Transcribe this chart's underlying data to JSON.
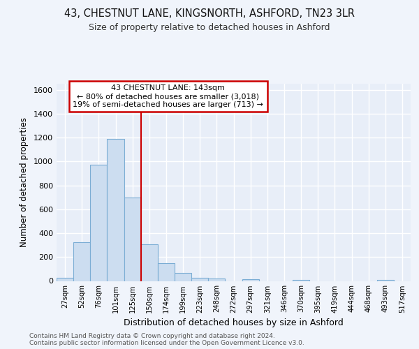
{
  "title1": "43, CHESTNUT LANE, KINGSNORTH, ASHFORD, TN23 3LR",
  "title2": "Size of property relative to detached houses in Ashford",
  "xlabel": "Distribution of detached houses by size in Ashford",
  "ylabel": "Number of detached properties",
  "footer1": "Contains HM Land Registry data © Crown copyright and database right 2024.",
  "footer2": "Contains public sector information licensed under the Open Government Licence v3.0.",
  "categories": [
    "27sqm",
    "52sqm",
    "76sqm",
    "101sqm",
    "125sqm",
    "150sqm",
    "174sqm",
    "199sqm",
    "223sqm",
    "248sqm",
    "272sqm",
    "297sqm",
    "321sqm",
    "346sqm",
    "370sqm",
    "395sqm",
    "419sqm",
    "444sqm",
    "468sqm",
    "493sqm",
    "517sqm"
  ],
  "values": [
    25,
    325,
    970,
    1190,
    700,
    305,
    150,
    65,
    28,
    18,
    0,
    15,
    0,
    0,
    10,
    0,
    0,
    0,
    0,
    10,
    0
  ],
  "bar_color": "#ccddf0",
  "bar_edge_color": "#7badd4",
  "annotation_line_color": "#cc0000",
  "annotation_text_line1": "43 CHESTNUT LANE: 143sqm",
  "annotation_text_line2": "← 80% of detached houses are smaller (3,018)",
  "annotation_text_line3": "19% of semi-detached houses are larger (713) →",
  "annotation_box_color": "#ffffff",
  "annotation_box_edge": "#cc0000",
  "bg_color": "#f0f4fb",
  "plot_bg_color": "#e8eef8",
  "grid_color": "#ffffff",
  "ylim": [
    0,
    1650
  ],
  "yticks": [
    0,
    200,
    400,
    600,
    800,
    1000,
    1200,
    1400,
    1600
  ]
}
